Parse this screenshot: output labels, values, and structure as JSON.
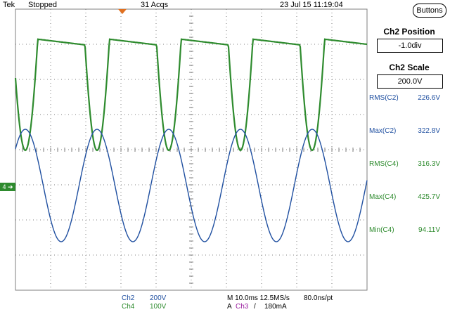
{
  "header": {
    "brand": "Tek",
    "status": "Stopped",
    "acquisitions": "31 Acqs",
    "datetime": "23 Jul 15 11:19:04"
  },
  "buttons_label": "Buttons",
  "side_panel": {
    "position_title": "Ch2 Position",
    "position_value": "-1.0div",
    "scale_title": "Ch2 Scale",
    "scale_value": "200.0V",
    "measurements": [
      {
        "label": "RMS(C2)",
        "value": "226.6V",
        "color": "#1f4fa0"
      },
      {
        "label": "Max(C2)",
        "value": "322.8V",
        "color": "#1f4fa0"
      },
      {
        "label": "RMS(C4)",
        "value": "316.3V",
        "color": "#2e8b2e"
      },
      {
        "label": "Max(C4)",
        "value": "425.7V",
        "color": "#2e8b2e"
      },
      {
        "label": "Min(C4)",
        "value": "94.11V",
        "color": "#2e8b2e"
      }
    ]
  },
  "channel_marker": "4",
  "footer": {
    "ch2_name": "Ch2",
    "ch2_scale": "200V",
    "ch4_name": "Ch4",
    "ch4_scale": "100V",
    "timebase": "M 10.0ms 12.5MS/s",
    "sample_period": "80.0ns/pt",
    "trigger_prefix": "A",
    "trigger_channel": "Ch3",
    "trigger_slope": "/",
    "trigger_level": "180mA"
  },
  "colors": {
    "ch2": "#1f4fa0",
    "ch4": "#2e8b2e",
    "trigger": "#e07020",
    "grid": "#7f7f7f"
  },
  "icons": {
    "trigger_marker": "trigger-position-arrow-icon",
    "channel_marker": "ch4-ground-arrow-icon"
  }
}
